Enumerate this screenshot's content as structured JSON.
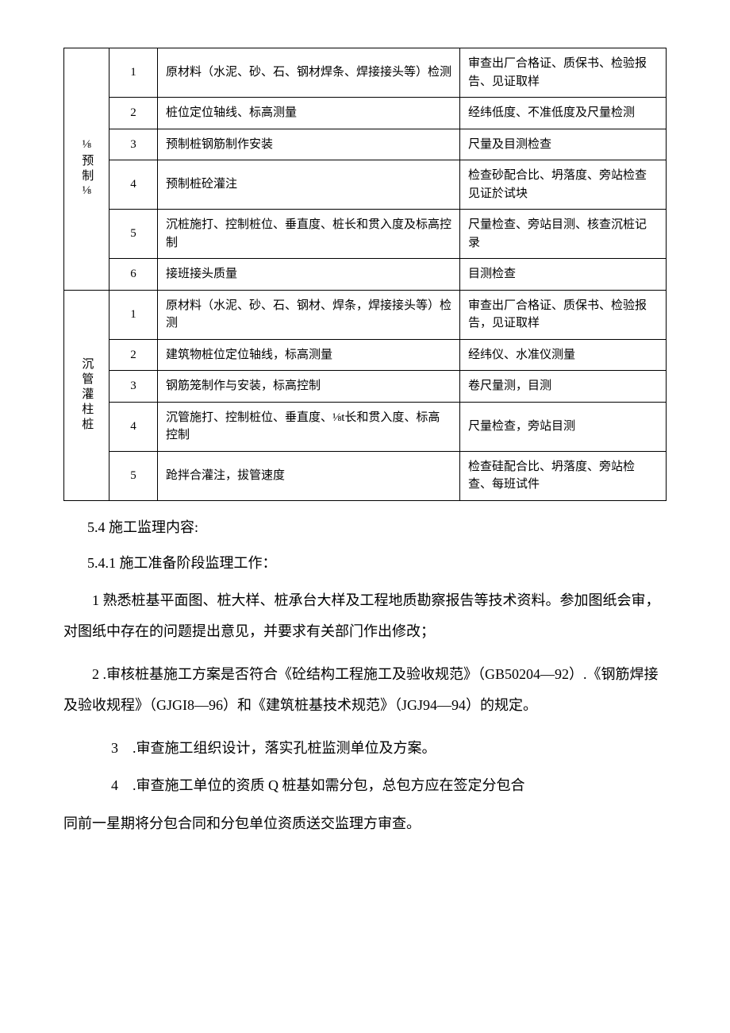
{
  "table": {
    "group1": {
      "label": "⅛预制⅛",
      "rows": [
        {
          "num": "1",
          "item": "原材料（水泥、砂、石、钢材焊条、焊接接头等）检测",
          "method": "审查出厂合格证、质保书、检验报告、见证取样"
        },
        {
          "num": "2",
          "item": "桩位定位轴线、标高测量",
          "method": "经纬低度、不准低度及尺量检测"
        },
        {
          "num": "3",
          "item": "预制桩钢筋制作安装",
          "method": "尺量及目测检查"
        },
        {
          "num": "4",
          "item": "预制桩砼灌注",
          "method": "检查砂配合比、坍落度、旁站检查见证於试块"
        },
        {
          "num": "5",
          "item": "沉桩施打、控制桩位、垂直度、桩长和贯入度及标高控制",
          "method": "尺量检查、旁站目测、核查沉桩记录"
        },
        {
          "num": "6",
          "item": "接班接头质量",
          "method": "目测检查"
        }
      ]
    },
    "group2": {
      "label": "沉管灌柱桩",
      "rows": [
        {
          "num": "1",
          "item": "原材料（水泥、砂、石、钢材、焊条，焊接接头等）检测",
          "method": "审查出厂合格证、质保书、检验报告，见证取样"
        },
        {
          "num": "2",
          "item": "建筑物桩位定位轴线，标高测量",
          "method": "经纬仪、水准仪测量"
        },
        {
          "num": "3",
          "item": "钢筋笼制作与安装，标高控制",
          "method": "卷尺量测，目测"
        },
        {
          "num": "4",
          "item": "沉管施打、控制桩位、垂直度、⅛t长和贯入度、标高控制",
          "method": "尺量检查，旁站目测"
        },
        {
          "num": "5",
          "item": "跄拌合灌注，拔管速度",
          "method": "检查硅配合比、坍落度、旁站检查、每班试件"
        }
      ]
    }
  },
  "sections": {
    "s54": "5.4 施工监理内容:",
    "s541": "5.4.1 施工准备阶段监理工作：",
    "p1": "1 熟悉桩基平面图、桩大样、桩承台大样及工程地质勘察报告等技术资料。参加图纸会审，对图纸中存在的问题提出意见，并要求有关部门作出修改；",
    "p2": "2 .审核桩基施工方案是否符合《砼结构工程施工及验收规范》（GB50204—92）.《钢筋焊接及验收规程》（GJGI8—96）和《建筑桩基技术规范》（JGJ94—94）的规定。",
    "p3": "3　.审查施工组织设计，落实孔桩监测单位及方案。",
    "p4": "4　.审查施工单位的资质 Q 桩基如需分包，总包方应在签定分包合",
    "p4b": "同前一星期将分包合同和分包单位资质送交监理方审查。"
  }
}
